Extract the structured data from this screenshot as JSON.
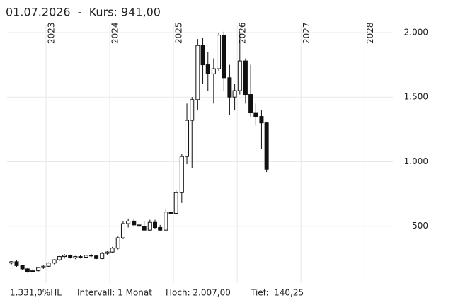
{
  "chart_data": {
    "type": "candlestick",
    "title": "01.07.2026  -  Kurs: 941,00",
    "footer": [
      "1.331,0%HL",
      "Intervall: 1 Monat",
      "Hoch: 2.007,00",
      "Tief:  140,25"
    ],
    "x": [
      2022.46,
      2022.54,
      2022.63,
      2022.71,
      2022.79,
      2022.88,
      2022.96,
      2023.04,
      2023.13,
      2023.21,
      2023.29,
      2023.38,
      2023.46,
      2023.54,
      2023.63,
      2023.71,
      2023.79,
      2023.88,
      2023.96,
      2024.04,
      2024.13,
      2024.21,
      2024.29,
      2024.38,
      2024.46,
      2024.54,
      2024.63,
      2024.71,
      2024.79,
      2024.88,
      2024.96,
      2025.04,
      2025.13,
      2025.21,
      2025.29,
      2025.38,
      2025.46,
      2025.54,
      2025.63,
      2025.71,
      2025.79,
      2025.88,
      2025.96,
      2026.04,
      2026.13,
      2026.21,
      2026.29,
      2026.38,
      2026.46
    ],
    "open": [
      215,
      225,
      195,
      170,
      150,
      155,
      180,
      190,
      215,
      240,
      265,
      275,
      255,
      265,
      260,
      275,
      270,
      250,
      290,
      300,
      330,
      410,
      520,
      540,
      510,
      500,
      470,
      530,
      490,
      470,
      610,
      600,
      760,
      1040,
      1320,
      1480,
      1900,
      1750,
      1680,
      1720,
      1980,
      1650,
      1500,
      1550,
      1780,
      1520,
      1380,
      1350,
      1300
    ],
    "high": [
      230,
      235,
      200,
      175,
      165,
      185,
      200,
      220,
      245,
      270,
      285,
      280,
      270,
      275,
      280,
      285,
      275,
      300,
      310,
      340,
      420,
      540,
      560,
      555,
      530,
      540,
      550,
      550,
      510,
      630,
      640,
      780,
      1060,
      1450,
      1500,
      1950,
      1960,
      1850,
      1800,
      2000,
      2007,
      1750,
      1600,
      2000,
      1800,
      1750,
      1450,
      1400,
      1310
    ],
    "low": [
      205,
      185,
      160,
      140.25,
      145,
      150,
      170,
      185,
      205,
      230,
      250,
      250,
      245,
      250,
      255,
      260,
      245,
      245,
      280,
      295,
      320,
      400,
      490,
      500,
      480,
      460,
      460,
      480,
      460,
      460,
      570,
      590,
      680,
      980,
      950,
      1400,
      1600,
      1550,
      1450,
      1700,
      1550,
      1360,
      1400,
      1520,
      1450,
      1350,
      1280,
      1100,
      920
    ],
    "close": [
      225,
      195,
      170,
      150,
      155,
      180,
      190,
      215,
      240,
      265,
      275,
      255,
      265,
      260,
      275,
      270,
      250,
      290,
      300,
      330,
      410,
      520,
      540,
      510,
      500,
      470,
      530,
      490,
      470,
      610,
      600,
      760,
      1040,
      1320,
      1480,
      1900,
      1750,
      1680,
      1720,
      1980,
      1650,
      1500,
      1550,
      1780,
      1520,
      1380,
      1350,
      1300,
      941
    ],
    "up_color": "#ffffff",
    "down_color": "#111111",
    "edge_color": "#111111",
    "xlim": [
      2022.39,
      2028.44
    ],
    "xticks": [
      2023,
      2024,
      2025,
      2026,
      2027,
      2028
    ],
    "ylim": [
      60,
      2060
    ],
    "yticks": [
      {
        "value": 500,
        "label": "500"
      },
      {
        "value": 1000,
        "label": "1.000"
      },
      {
        "value": 1500,
        "label": "1.500"
      },
      {
        "value": 2000,
        "label": "2.000"
      }
    ],
    "grid": true
  }
}
